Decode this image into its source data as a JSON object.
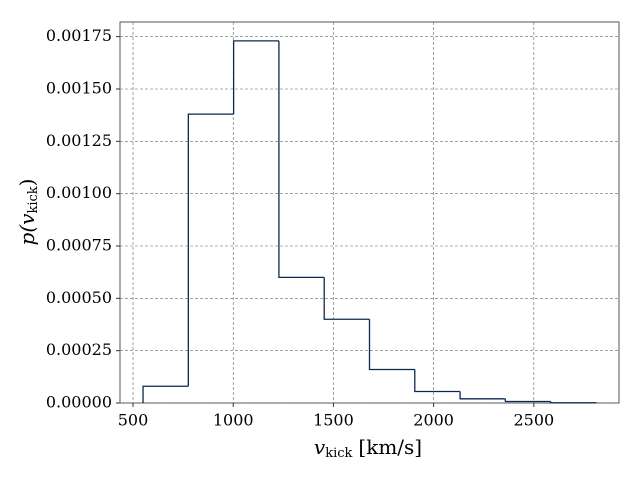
{
  "chart_data": {
    "type": "histogram",
    "xlabel": {
      "symbol": "v",
      "subscript": "kick",
      "unit": "[km/s]"
    },
    "ylabel": {
      "prefix": "p(",
      "symbol": "v",
      "subscript": "kick",
      "suffix": ")"
    },
    "bins": [
      550,
      776,
      1002,
      1228,
      1454,
      1680,
      1906,
      2132,
      2358,
      2584,
      2810
    ],
    "values": [
      8e-05,
      0.00138,
      0.00173,
      0.0006,
      0.0004,
      0.00016,
      5.5e-05,
      2e-05,
      7e-06,
      1e-06
    ],
    "color": "#0b2a50",
    "xlim": [
      435,
      2925
    ],
    "xticks": [
      500,
      1000,
      1500,
      2000,
      2500
    ],
    "ylim": [
      0,
      0.00182
    ],
    "yticks": [
      {
        "value": 0,
        "label": "0.00000"
      },
      {
        "value": 0.00025,
        "label": "0.00025"
      },
      {
        "value": 0.0005,
        "label": "0.00050"
      },
      {
        "value": 0.00075,
        "label": "0.00075"
      },
      {
        "value": 0.001,
        "label": "0.00100"
      },
      {
        "value": 0.00125,
        "label": "0.00125"
      },
      {
        "value": 0.0015,
        "label": "0.00150"
      },
      {
        "value": 0.00175,
        "label": "0.00175"
      }
    ],
    "grid": true
  }
}
